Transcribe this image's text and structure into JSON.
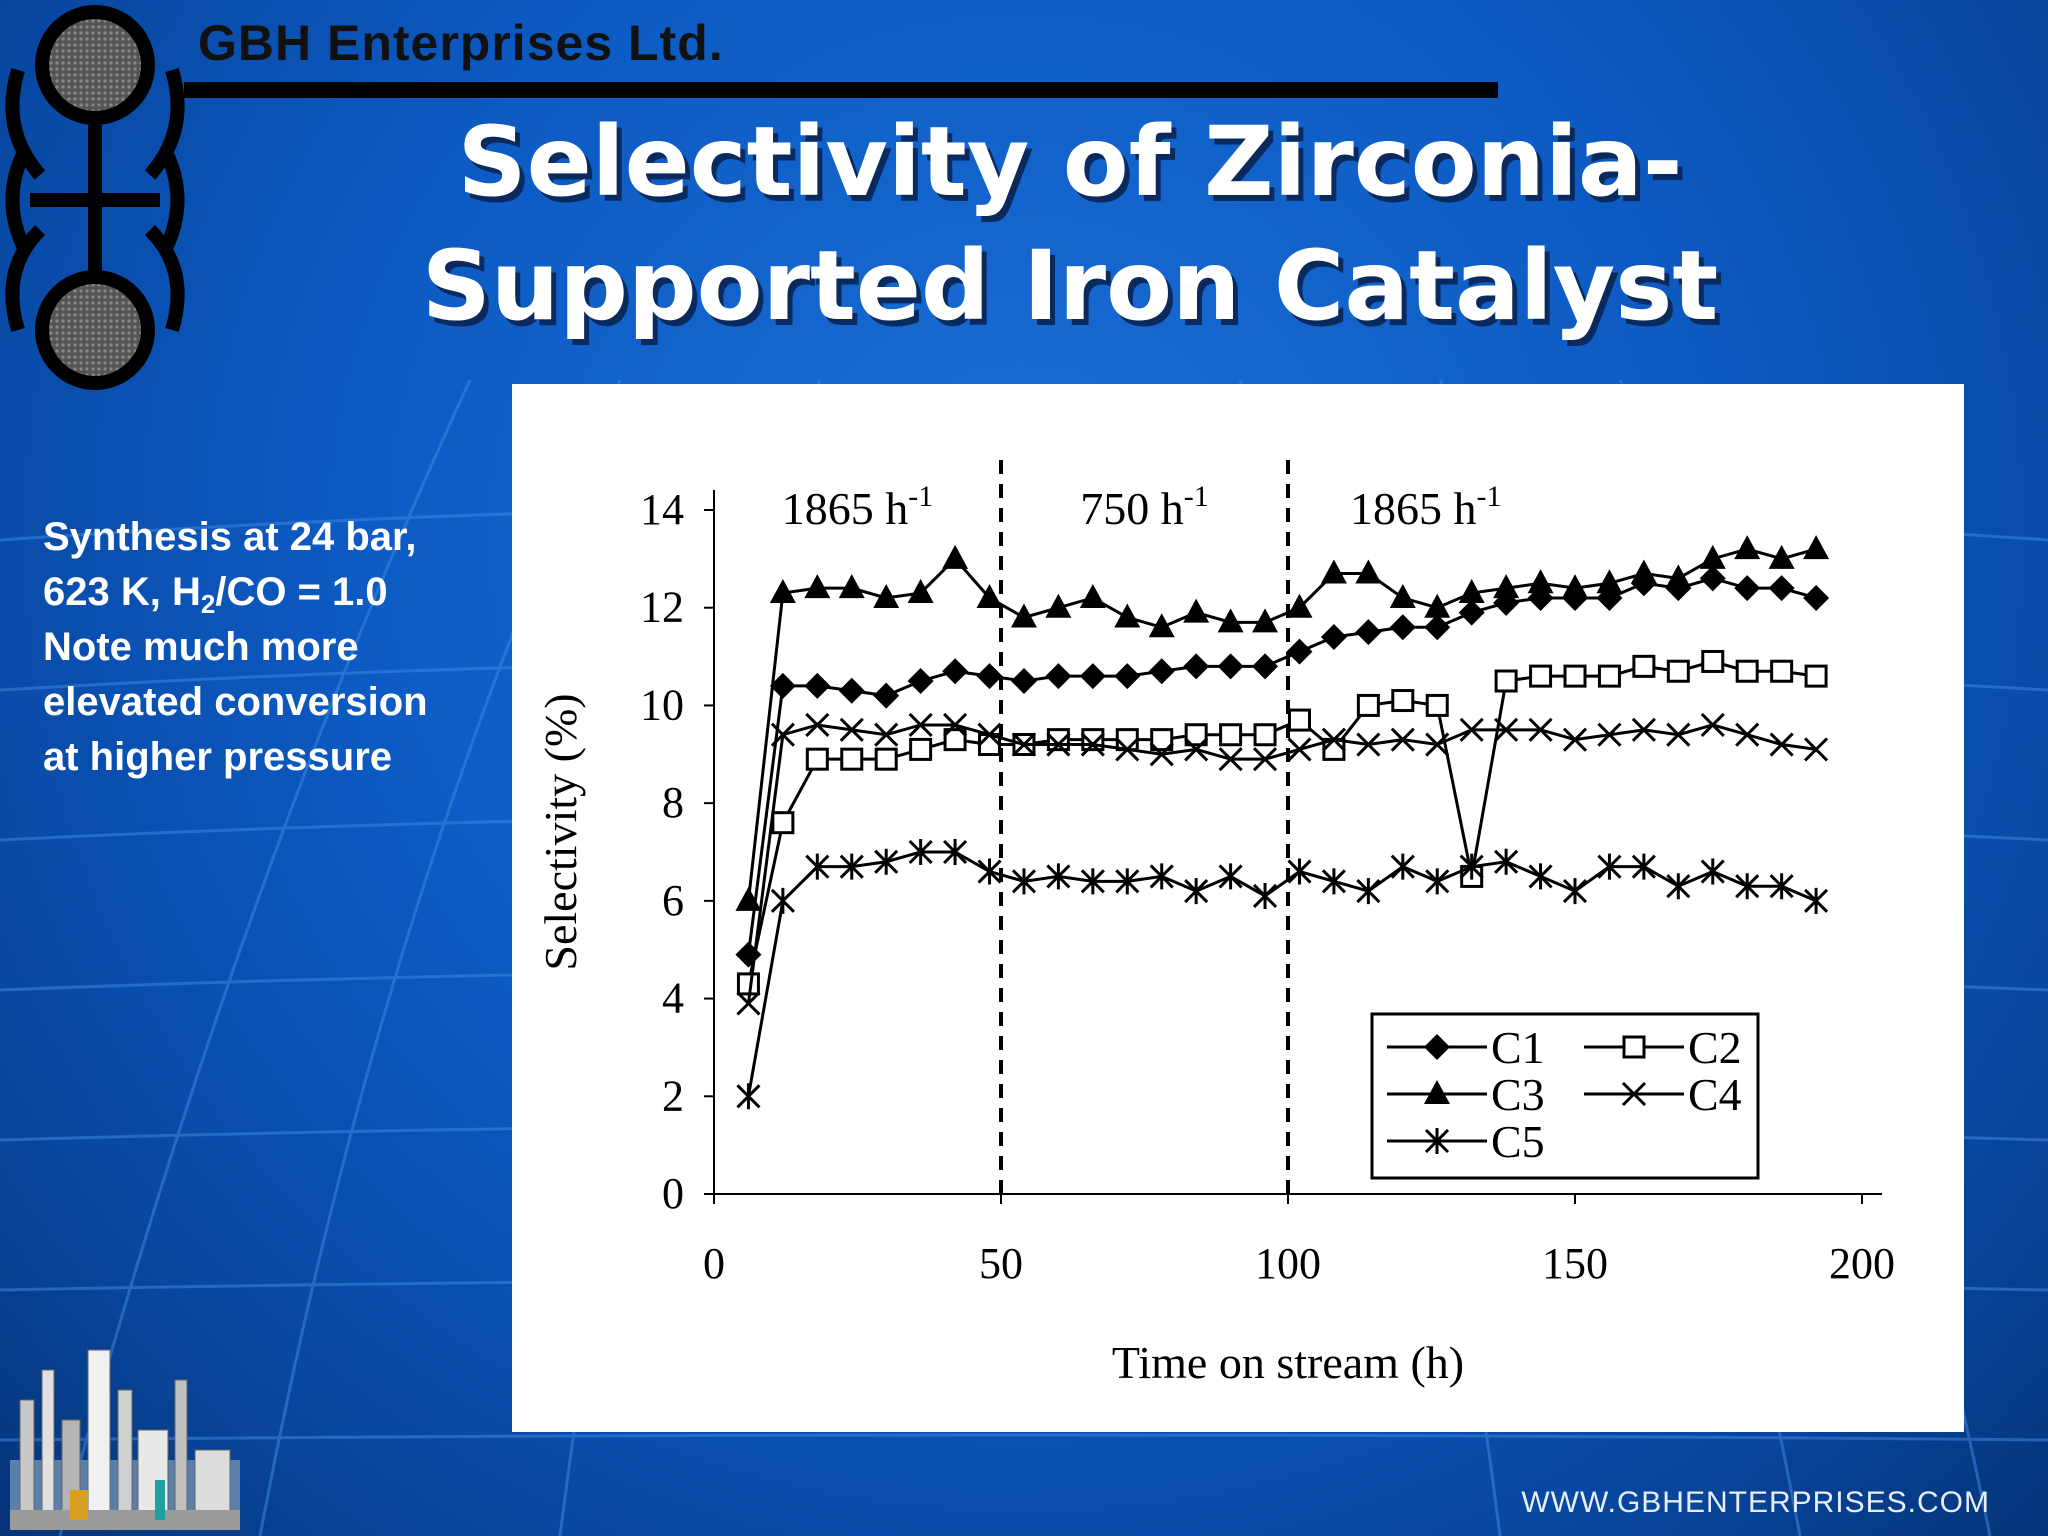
{
  "slide": {
    "company": "GBH Enterprises Ltd.",
    "title_line1": "Selectivity of Zirconia-",
    "title_line2": "Supported Iron Catalyst",
    "notes": {
      "line1": "Synthesis at 24 bar,",
      "line2_pre": "623 K, H",
      "line2_sub": "2",
      "line2_post": "/CO = 1.0",
      "line3": "Note much more",
      "line4": "elevated conversion",
      "line5": "at higher pressure"
    },
    "footer": "WWW.GBHENTERPRISES.COM"
  },
  "colors": {
    "background": "#0d5bc4",
    "title": "#ffffff",
    "chart_bg": "#ffffff",
    "ink": "#000000"
  },
  "chart_data": {
    "type": "line",
    "xlabel": "Time on stream (h)",
    "ylabel": "Selectivity (%)",
    "xlim": [
      0,
      200
    ],
    "ylim": [
      0,
      14
    ],
    "xticks": [
      0,
      50,
      100,
      150,
      200
    ],
    "yticks": [
      0,
      2,
      4,
      6,
      8,
      10,
      12,
      14
    ],
    "regions": [
      {
        "base": "1865 h",
        "sup": "-1",
        "x_start": 0,
        "x_end": 50
      },
      {
        "base": "750 h",
        "sup": "-1",
        "x_start": 50,
        "x_end": 100
      },
      {
        "base": "1865 h",
        "sup": "-1",
        "x_start": 100,
        "x_end": 200
      }
    ],
    "dividers_x": [
      50,
      100
    ],
    "legend_position": "bottom-right",
    "series": [
      {
        "name": "C1",
        "marker": "diamond",
        "x": [
          6,
          12,
          18,
          24,
          30,
          36,
          42,
          48,
          54,
          60,
          66,
          72,
          78,
          84,
          90,
          96,
          102,
          108,
          114,
          120,
          126,
          132,
          138,
          144,
          150,
          156,
          162,
          168,
          174,
          180,
          186,
          192
        ],
        "y": [
          4.9,
          10.4,
          10.4,
          10.3,
          10.2,
          10.5,
          10.7,
          10.6,
          10.5,
          10.6,
          10.6,
          10.6,
          10.7,
          10.8,
          10.8,
          10.8,
          11.1,
          11.4,
          11.5,
          11.6,
          11.6,
          11.9,
          12.1,
          12.2,
          12.2,
          12.2,
          12.5,
          12.4,
          12.6,
          12.4,
          12.4,
          12.2
        ]
      },
      {
        "name": "C2",
        "marker": "square",
        "x": [
          6,
          12,
          18,
          24,
          30,
          36,
          42,
          48,
          54,
          60,
          66,
          72,
          78,
          84,
          90,
          96,
          102,
          108,
          114,
          120,
          126,
          132,
          138,
          144,
          150,
          156,
          162,
          168,
          174,
          180,
          186,
          192
        ],
        "y": [
          4.3,
          7.6,
          8.9,
          8.9,
          8.9,
          9.1,
          9.3,
          9.2,
          9.2,
          9.3,
          9.3,
          9.3,
          9.3,
          9.4,
          9.4,
          9.4,
          9.7,
          9.1,
          10.0,
          10.1,
          10.0,
          6.5,
          10.5,
          10.6,
          10.6,
          10.6,
          10.8,
          10.7,
          10.9,
          10.7,
          10.7,
          10.6
        ]
      },
      {
        "name": "C3",
        "marker": "triangle",
        "x": [
          6,
          12,
          18,
          24,
          30,
          36,
          42,
          48,
          54,
          60,
          66,
          72,
          78,
          84,
          90,
          96,
          102,
          108,
          114,
          120,
          126,
          132,
          138,
          144,
          150,
          156,
          162,
          168,
          174,
          180,
          186,
          192
        ],
        "y": [
          6.0,
          12.3,
          12.4,
          12.4,
          12.2,
          12.3,
          13.0,
          12.2,
          11.8,
          12.0,
          12.2,
          11.8,
          11.6,
          11.9,
          11.7,
          11.7,
          12.0,
          12.7,
          12.7,
          12.2,
          12.0,
          12.3,
          12.4,
          12.5,
          12.4,
          12.5,
          12.7,
          12.6,
          13.0,
          13.2,
          13.0,
          13.2
        ]
      },
      {
        "name": "C4",
        "marker": "x",
        "x": [
          6,
          12,
          18,
          24,
          30,
          36,
          42,
          48,
          54,
          60,
          66,
          72,
          78,
          84,
          90,
          96,
          102,
          108,
          114,
          120,
          126,
          132,
          138,
          144,
          150,
          156,
          162,
          168,
          174,
          180,
          186,
          192
        ],
        "y": [
          3.9,
          9.4,
          9.6,
          9.5,
          9.4,
          9.6,
          9.6,
          9.4,
          9.2,
          9.2,
          9.2,
          9.1,
          9.0,
          9.1,
          8.9,
          8.9,
          9.1,
          9.3,
          9.2,
          9.3,
          9.2,
          9.5,
          9.5,
          9.5,
          9.3,
          9.4,
          9.5,
          9.4,
          9.6,
          9.4,
          9.2,
          9.1
        ]
      },
      {
        "name": "C5",
        "marker": "asterisk",
        "x": [
          6,
          12,
          18,
          24,
          30,
          36,
          42,
          48,
          54,
          60,
          66,
          72,
          78,
          84,
          90,
          96,
          102,
          108,
          114,
          120,
          126,
          132,
          138,
          144,
          150,
          156,
          162,
          168,
          174,
          180,
          186,
          192
        ],
        "y": [
          2.0,
          6.0,
          6.7,
          6.7,
          6.8,
          7.0,
          7.0,
          6.6,
          6.4,
          6.5,
          6.4,
          6.4,
          6.5,
          6.2,
          6.5,
          6.1,
          6.6,
          6.4,
          6.2,
          6.7,
          6.4,
          6.7,
          6.8,
          6.5,
          6.2,
          6.7,
          6.7,
          6.3,
          6.6,
          6.3,
          6.3,
          6.0
        ]
      }
    ]
  }
}
